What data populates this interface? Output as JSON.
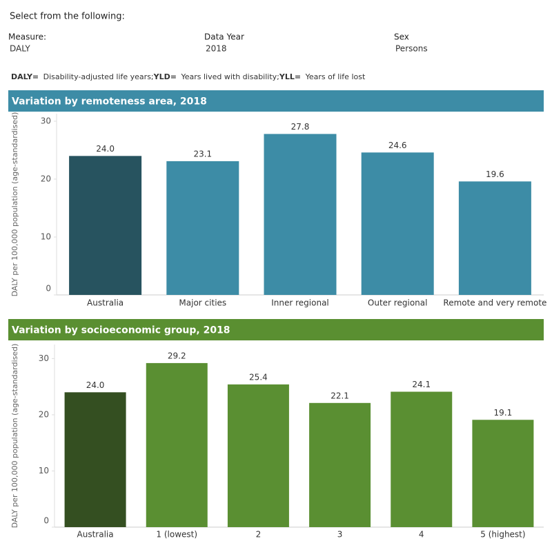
{
  "header": {
    "prompt": "Select from the following:",
    "filters": [
      {
        "label": "Measure:",
        "value": "DALY"
      },
      {
        "label": "Data Year",
        "value": "2018"
      },
      {
        "label": "Sex",
        "value": "Persons"
      }
    ],
    "notes": [
      {
        "term": "DALY=",
        "text": " Disability-adjusted life years;"
      },
      {
        "term": "YLD=",
        "text": " Years lived with disability;"
      },
      {
        "term": "YLL=",
        "text": " Years of life lost"
      }
    ]
  },
  "chart_data": [
    {
      "type": "bar",
      "title": "Variation by remoteness area, 2018",
      "banner_color": "#3d8ca6",
      "y_label": "DALY per 100,000 population (age-standardised)",
      "categories": [
        "Australia",
        "Major cities",
        "Inner regional",
        "Outer regional",
        "Remote and very remote"
      ],
      "values": [
        24.0,
        23.1,
        27.8,
        24.6,
        19.6
      ],
      "value_labels": [
        "24.0",
        "23.1",
        "27.8",
        "24.6",
        "19.6"
      ],
      "colors": [
        "#27535f",
        "#3d8ca6",
        "#3d8ca6",
        "#3d8ca6",
        "#3d8ca6"
      ],
      "ylim": [
        0,
        31.3
      ],
      "yticks": [
        0,
        10,
        20,
        30
      ]
    },
    {
      "type": "bar",
      "title": "Variation by socioeconomic group, 2018",
      "banner_color": "#5a8f31",
      "y_label": "DALY per 100,000 population (age-standardised)",
      "categories": [
        "Australia",
        "1 (lowest)",
        "2",
        "3",
        "4",
        "5 (highest)"
      ],
      "values": [
        24.0,
        29.2,
        25.4,
        22.1,
        24.1,
        19.1
      ],
      "value_labels": [
        "24.0",
        "29.2",
        "25.4",
        "22.1",
        "24.1",
        "19.1"
      ],
      "colors": [
        "#344f21",
        "#5a8f32",
        "#5a8f32",
        "#5a8f32",
        "#5a8f32",
        "#5a8f32"
      ],
      "ylim": [
        0,
        32.5
      ],
      "yticks": [
        0,
        10,
        20,
        30
      ]
    }
  ]
}
